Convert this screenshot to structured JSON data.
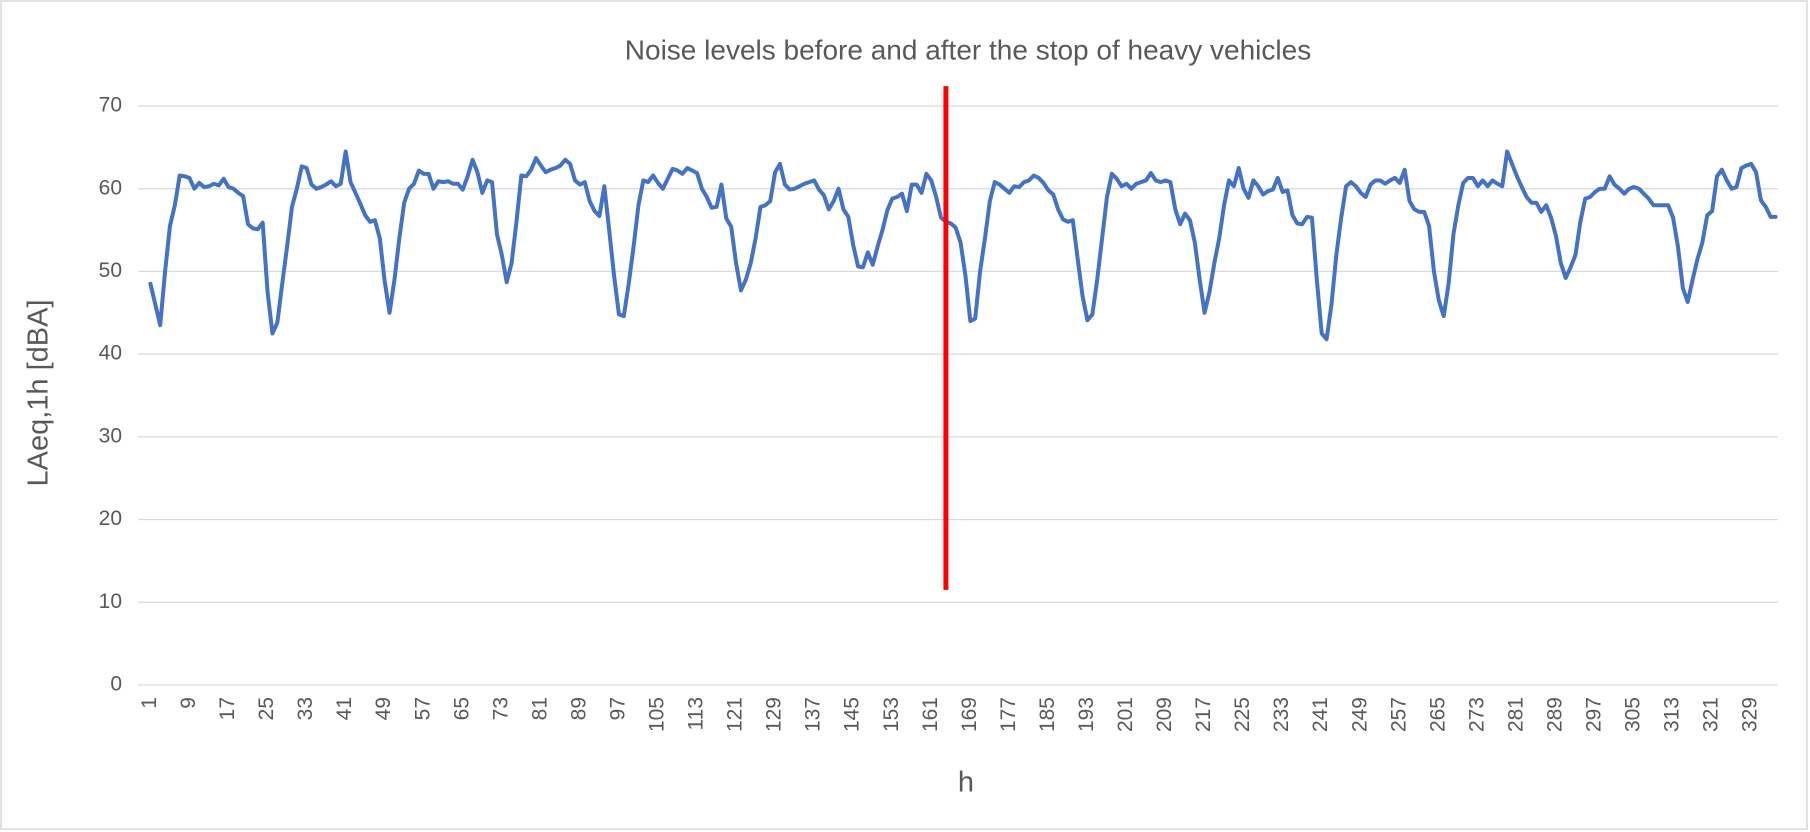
{
  "chart_data": {
    "type": "line",
    "title": "Noise levels before and after the stop of heavy vehicles",
    "x_label": "h",
    "y_label": "LAeq,1h [dBA]",
    "color": "#4472c4",
    "grid": true,
    "ylim": [
      0,
      70
    ],
    "yticks": [
      0,
      10,
      20,
      30,
      40,
      50,
      60,
      70
    ],
    "vline": {
      "x": 164,
      "y": [
        11.5,
        72.4
      ],
      "color": "#ff0000"
    },
    "categories": [
      "1",
      null,
      null,
      null,
      null,
      null,
      null,
      null,
      "9",
      null,
      null,
      null,
      null,
      null,
      null,
      null,
      "17",
      null,
      null,
      null,
      null,
      null,
      null,
      null,
      "25",
      null,
      null,
      null,
      null,
      null,
      null,
      null,
      "33",
      null,
      null,
      null,
      null,
      null,
      null,
      null,
      "41",
      null,
      null,
      null,
      null,
      null,
      null,
      null,
      "49",
      null,
      null,
      null,
      null,
      null,
      null,
      null,
      "57",
      null,
      null,
      null,
      null,
      null,
      null,
      null,
      "65",
      null,
      null,
      null,
      null,
      null,
      null,
      null,
      "73",
      null,
      null,
      null,
      null,
      null,
      null,
      null,
      "81",
      null,
      null,
      null,
      null,
      null,
      null,
      null,
      "89",
      null,
      null,
      null,
      null,
      null,
      null,
      null,
      "97",
      null,
      null,
      null,
      null,
      null,
      null,
      null,
      "105",
      null,
      null,
      null,
      null,
      null,
      null,
      null,
      "113",
      null,
      null,
      null,
      null,
      null,
      null,
      null,
      "121",
      null,
      null,
      null,
      null,
      null,
      null,
      null,
      "129",
      null,
      null,
      null,
      null,
      null,
      null,
      null,
      "137",
      null,
      null,
      null,
      null,
      null,
      null,
      null,
      "145",
      null,
      null,
      null,
      null,
      null,
      null,
      null,
      "153",
      null,
      null,
      null,
      null,
      null,
      null,
      null,
      "161",
      null,
      null,
      null,
      null,
      null,
      null,
      null,
      "169",
      null,
      null,
      null,
      null,
      null,
      null,
      null,
      "177",
      null,
      null,
      null,
      null,
      null,
      null,
      null,
      "185",
      null,
      null,
      null,
      null,
      null,
      null,
      null,
      "193",
      null,
      null,
      null,
      null,
      null,
      null,
      null,
      "201",
      null,
      null,
      null,
      null,
      null,
      null,
      null,
      "209",
      null,
      null,
      null,
      null,
      null,
      null,
      null,
      "217",
      null,
      null,
      null,
      null,
      null,
      null,
      null,
      "225",
      null,
      null,
      null,
      null,
      null,
      null,
      null,
      "233",
      null,
      null,
      null,
      null,
      null,
      null,
      null,
      "241",
      null,
      null,
      null,
      null,
      null,
      null,
      null,
      "249",
      null,
      null,
      null,
      null,
      null,
      null,
      null,
      "257",
      null,
      null,
      null,
      null,
      null,
      null,
      null,
      "265",
      null,
      null,
      null,
      null,
      null,
      null,
      null,
      "273",
      null,
      null,
      null,
      null,
      null,
      null,
      null,
      "281",
      null,
      null,
      null,
      null,
      null,
      null,
      null,
      "289",
      null,
      null,
      null,
      null,
      null,
      null,
      null,
      "297",
      null,
      null,
      null,
      null,
      null,
      null,
      null,
      "305",
      null,
      null,
      null,
      null,
      null,
      null,
      null,
      "313",
      null,
      null,
      null,
      null,
      null,
      null,
      null,
      "321",
      null,
      null,
      null,
      null,
      null,
      null,
      null,
      "329",
      null,
      null,
      null,
      null,
      null
    ],
    "values": [
      48.5,
      46,
      43.5,
      50,
      55.5,
      58,
      61.6,
      61.5,
      61.3,
      60,
      60.7,
      60.2,
      60.3,
      60.6,
      60.4,
      61.2,
      60.2,
      60,
      59.5,
      59.1,
      55.7,
      55.2,
      55.1,
      55.9,
      47.5,
      42.5,
      43.8,
      48.5,
      53,
      57.8,
      60,
      62.7,
      62.5,
      60.5,
      60,
      60.2,
      60.5,
      60.9,
      60.3,
      60.6,
      64.5,
      60.8,
      59.5,
      58.2,
      56.8,
      56,
      56.2,
      54,
      48.8,
      45,
      49,
      54,
      58.3,
      60,
      60.6,
      62.2,
      61.8,
      61.8,
      60,
      60.9,
      60.8,
      60.9,
      60.6,
      60.6,
      59.9,
      61.5,
      63.5,
      62,
      59.5,
      61,
      60.8,
      54.5,
      52,
      48.7,
      51,
      56,
      61.6,
      61.5,
      62.3,
      63.7,
      62.8,
      62,
      62.3,
      62.5,
      62.8,
      63.5,
      63,
      61,
      60.5,
      60.8,
      58.5,
      57.3,
      56.7,
      60.3,
      55,
      49.5,
      44.8,
      44.6,
      48.5,
      53,
      58,
      61,
      60.8,
      61.6,
      60.7,
      60,
      61.2,
      62.4,
      62.2,
      61.8,
      62.5,
      62.2,
      61.9,
      60,
      59,
      57.7,
      57.8,
      60.5,
      56.4,
      55.4,
      51,
      47.7,
      49,
      51,
      54,
      57.8,
      58,
      58.5,
      62,
      63,
      60.5,
      59.9,
      60,
      60.3,
      60.6,
      60.8,
      61,
      59.9,
      59.2,
      57.5,
      58.5,
      60,
      57.5,
      56.6,
      53.2,
      50.6,
      50.5,
      52.3,
      50.8,
      53,
      55,
      57.4,
      58.8,
      59,
      59.4,
      57.3,
      60.5,
      60.5,
      59.5,
      61.8,
      61,
      59,
      56.5,
      56,
      55.8,
      55.3,
      53.5,
      49.5,
      44,
      44.3,
      50,
      54,
      58.5,
      60.8,
      60.5,
      60,
      59.5,
      60.3,
      60.2,
      60.8,
      61,
      61.6,
      61.3,
      60.7,
      59.8,
      59.3,
      57.5,
      56.3,
      56,
      56.2,
      51.5,
      47,
      44.1,
      44.8,
      49,
      54,
      59,
      61.8,
      61.2,
      60.3,
      60.6,
      60,
      60.6,
      60.8,
      61,
      61.9,
      61,
      60.8,
      61,
      60.8,
      57.5,
      55.7,
      57,
      56.2,
      53.5,
      49,
      45,
      47.5,
      51,
      54,
      58,
      61,
      60.3,
      62.5,
      60,
      58.9,
      61,
      60.3,
      59.3,
      59.7,
      59.9,
      61.3,
      59.6,
      59.8,
      56.8,
      55.8,
      55.7,
      56.6,
      56.5,
      49,
      42.5,
      41.8,
      46,
      52,
      56.5,
      60.3,
      60.8,
      60.3,
      59.5,
      59,
      60.5,
      61,
      61,
      60.6,
      61,
      61.3,
      60.7,
      62.3,
      58.5,
      57.5,
      57.2,
      57.2,
      55.5,
      50,
      46.5,
      44.6,
      48.5,
      54.5,
      58,
      60.7,
      61.3,
      61.3,
      60.3,
      61,
      60.3,
      61,
      60.6,
      60.3,
      64.5,
      63,
      61.5,
      60.2,
      59,
      58.3,
      58.3,
      57.2,
      58,
      56.5,
      54.3,
      51,
      49.2,
      50.5,
      52,
      56,
      58.8,
      59,
      59.6,
      60,
      60,
      61.5,
      60.5,
      60,
      59.4,
      60,
      60.2,
      60,
      59.4,
      58.8,
      58,
      58,
      58,
      58,
      56.5,
      53,
      48,
      46.3,
      49,
      51.5,
      53.5,
      56.8,
      57.3,
      61.5,
      62.3,
      61,
      60,
      60.2,
      62.5,
      62.8,
      63,
      62,
      58.6,
      57.8,
      56.6,
      56.6
    ]
  }
}
